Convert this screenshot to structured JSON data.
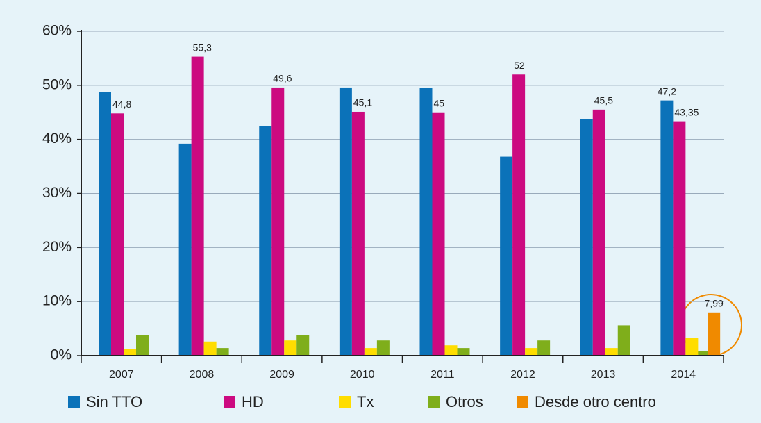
{
  "chart_data": {
    "type": "bar",
    "categories": [
      "2007",
      "2008",
      "2009",
      "2010",
      "2011",
      "2012",
      "2013",
      "2014"
    ],
    "series": [
      {
        "name": "Sin TTO",
        "color": "#0b72b9",
        "values": [
          48.8,
          39.2,
          42.4,
          49.6,
          49.5,
          36.8,
          43.7,
          47.2
        ],
        "value_labels": [
          null,
          null,
          null,
          null,
          null,
          null,
          null,
          "47,2"
        ]
      },
      {
        "name": "HD",
        "color": "#cc0a80",
        "values": [
          44.8,
          55.3,
          49.6,
          45.1,
          45,
          52,
          45.5,
          43.35
        ],
        "value_labels": [
          "44,8",
          "55,3",
          "49,6",
          "45,1",
          "45",
          "52",
          "45,5",
          "43,35"
        ]
      },
      {
        "name": "Tx",
        "color": "#ffdd00",
        "values": [
          1.2,
          2.6,
          2.8,
          1.4,
          1.9,
          1.4,
          1.4,
          3.3
        ]
      },
      {
        "name": "Otros",
        "color": "#7fae1b",
        "values": [
          3.8,
          1.4,
          3.8,
          2.8,
          1.4,
          2.8,
          5.6,
          0.9
        ]
      },
      {
        "name": "Desde otro centro",
        "color": "#f08a00",
        "values": [
          null,
          null,
          null,
          null,
          null,
          null,
          null,
          7.99
        ],
        "value_labels": [
          null,
          null,
          null,
          null,
          null,
          null,
          null,
          "7,99"
        ]
      }
    ],
    "ylim": [
      0,
      60
    ],
    "yticks": [
      {
        "value": 0,
        "label": "0%"
      },
      {
        "value": 10,
        "label": "10%"
      },
      {
        "value": 20,
        "label": "20%"
      },
      {
        "value": 30,
        "label": "30%"
      },
      {
        "value": 40,
        "label": "40%"
      },
      {
        "value": 50,
        "label": "50%"
      },
      {
        "value": 60,
        "label": "60%"
      }
    ],
    "grid": true,
    "legend": "bottom"
  }
}
